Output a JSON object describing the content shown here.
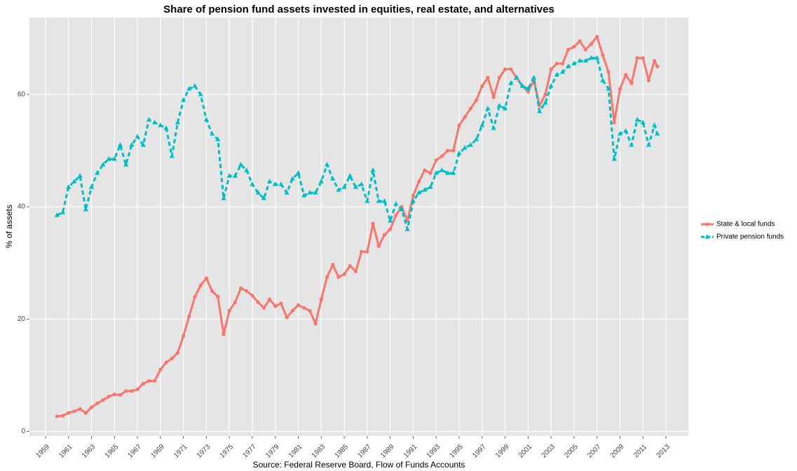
{
  "chart_data": {
    "type": "line",
    "title": "Share of pension fund assets invested in equities, real estate, and alternatives",
    "y_label": "% of assets",
    "source": "Source: Federal Reserve Board, Flow of Funds Accounts",
    "legend_position": "right",
    "grid": true,
    "xlim": [
      1957.6,
      2014.95
    ],
    "ylim": [
      -0.8,
      73.7
    ],
    "xticks": [
      1959,
      1961,
      1963,
      1965,
      1967,
      1969,
      1971,
      1973,
      1975,
      1977,
      1979,
      1981,
      1983,
      1985,
      1987,
      1989,
      1991,
      1993,
      1995,
      1997,
      1999,
      2001,
      2003,
      2005,
      2007,
      2009,
      2011,
      2013
    ],
    "yticks": [
      0,
      20,
      40,
      60
    ],
    "x": [
      1960.0,
      1960.5,
      1961.0,
      1961.5,
      1962.0,
      1962.5,
      1963.0,
      1963.5,
      1964.0,
      1964.5,
      1965.0,
      1965.5,
      1966.0,
      1966.5,
      1967.0,
      1967.5,
      1968.0,
      1968.5,
      1969.0,
      1969.5,
      1970.0,
      1970.5,
      1971.0,
      1971.5,
      1972.0,
      1972.5,
      1973.0,
      1973.5,
      1974.0,
      1974.5,
      1975.0,
      1975.5,
      1976.0,
      1976.5,
      1977.0,
      1977.5,
      1978.0,
      1978.5,
      1979.0,
      1979.5,
      1980.0,
      1980.5,
      1981.0,
      1981.5,
      1982.0,
      1982.5,
      1983.0,
      1983.5,
      1984.0,
      1984.5,
      1985.0,
      1985.5,
      1986.0,
      1986.5,
      1987.0,
      1987.5,
      1988.0,
      1988.5,
      1989.0,
      1989.5,
      1990.0,
      1990.5,
      1991.0,
      1991.5,
      1992.0,
      1992.5,
      1993.0,
      1993.5,
      1994.0,
      1994.5,
      1995.0,
      1995.5,
      1996.0,
      1996.5,
      1997.0,
      1997.5,
      1998.0,
      1998.5,
      1999.0,
      1999.5,
      2000.0,
      2000.5,
      2001.0,
      2001.5,
      2002.0,
      2002.5,
      2003.0,
      2003.5,
      2004.0,
      2004.5,
      2005.0,
      2005.5,
      2006.0,
      2006.5,
      2007.0,
      2007.5,
      2008.0,
      2008.5,
      2009.0,
      2009.5,
      2010.0,
      2010.5,
      2011.0,
      2011.5,
      2012.0,
      2012.25
    ],
    "series": [
      {
        "name": "State & local funds",
        "color": "#f8766d",
        "line_style": "solid",
        "marker": "circle",
        "values": [
          2.7,
          2.8,
          3.3,
          3.6,
          4.0,
          3.3,
          4.3,
          5.0,
          5.6,
          6.2,
          6.6,
          6.5,
          7.2,
          7.2,
          7.5,
          8.5,
          9.0,
          9.0,
          11.0,
          12.3,
          13.0,
          14.0,
          17,
          20.5,
          24,
          26,
          27.3,
          25,
          24,
          17.3,
          21.5,
          23,
          25.5,
          25,
          24.2,
          23,
          22,
          23.5,
          22.3,
          22.8,
          20.3,
          21.5,
          22.5,
          22.0,
          21.5,
          19.2,
          23.5,
          27.5,
          29.7,
          27.5,
          28,
          29.5,
          28.5,
          32,
          32,
          37,
          33,
          35,
          36,
          38.5,
          40,
          37.5,
          42,
          44.5,
          46.5,
          46,
          48.3,
          49,
          50,
          50,
          54.5,
          56,
          57.5,
          59,
          61.5,
          63,
          59.5,
          63,
          64.5,
          64.5,
          63,
          61.5,
          60.5,
          62.5,
          58,
          60,
          64.5,
          65.5,
          65.5,
          68,
          68.5,
          69.5,
          68,
          69,
          70.3,
          67,
          64,
          55,
          61,
          63.5,
          62,
          66.5,
          66.5,
          62.5,
          66,
          65
        ]
      },
      {
        "name": "Private pension funds",
        "color": "#00bfc4",
        "line_style": "dashed",
        "marker": "triangle",
        "values": [
          38.5,
          39,
          43.5,
          44.5,
          45.5,
          39.5,
          43.5,
          46,
          47.5,
          48.5,
          48.5,
          51,
          47.5,
          51,
          52.5,
          51,
          55.5,
          55,
          54.5,
          54,
          49,
          55,
          59,
          61,
          61.5,
          60,
          55.5,
          53,
          52,
          41.5,
          45.5,
          45.5,
          47.5,
          46.5,
          44,
          42.5,
          41.5,
          44.5,
          44,
          44,
          42.5,
          45,
          46,
          42,
          42.5,
          42.5,
          44.5,
          47.5,
          45,
          43,
          43.5,
          45.5,
          43.5,
          44,
          41,
          46.5,
          41,
          41,
          37.5,
          40.5,
          39.5,
          36,
          41,
          42.5,
          43,
          43.5,
          46,
          46.5,
          46,
          46,
          49.5,
          50.5,
          51,
          52,
          54.5,
          57.5,
          54,
          58,
          57.5,
          62,
          63,
          61.5,
          61,
          63,
          57,
          58.5,
          61.5,
          63.5,
          64,
          65,
          65.5,
          66,
          66,
          66.5,
          66.5,
          62.5,
          61,
          48.5,
          53,
          53.5,
          51,
          55.5,
          55,
          51,
          54.5,
          53
        ]
      }
    ]
  }
}
